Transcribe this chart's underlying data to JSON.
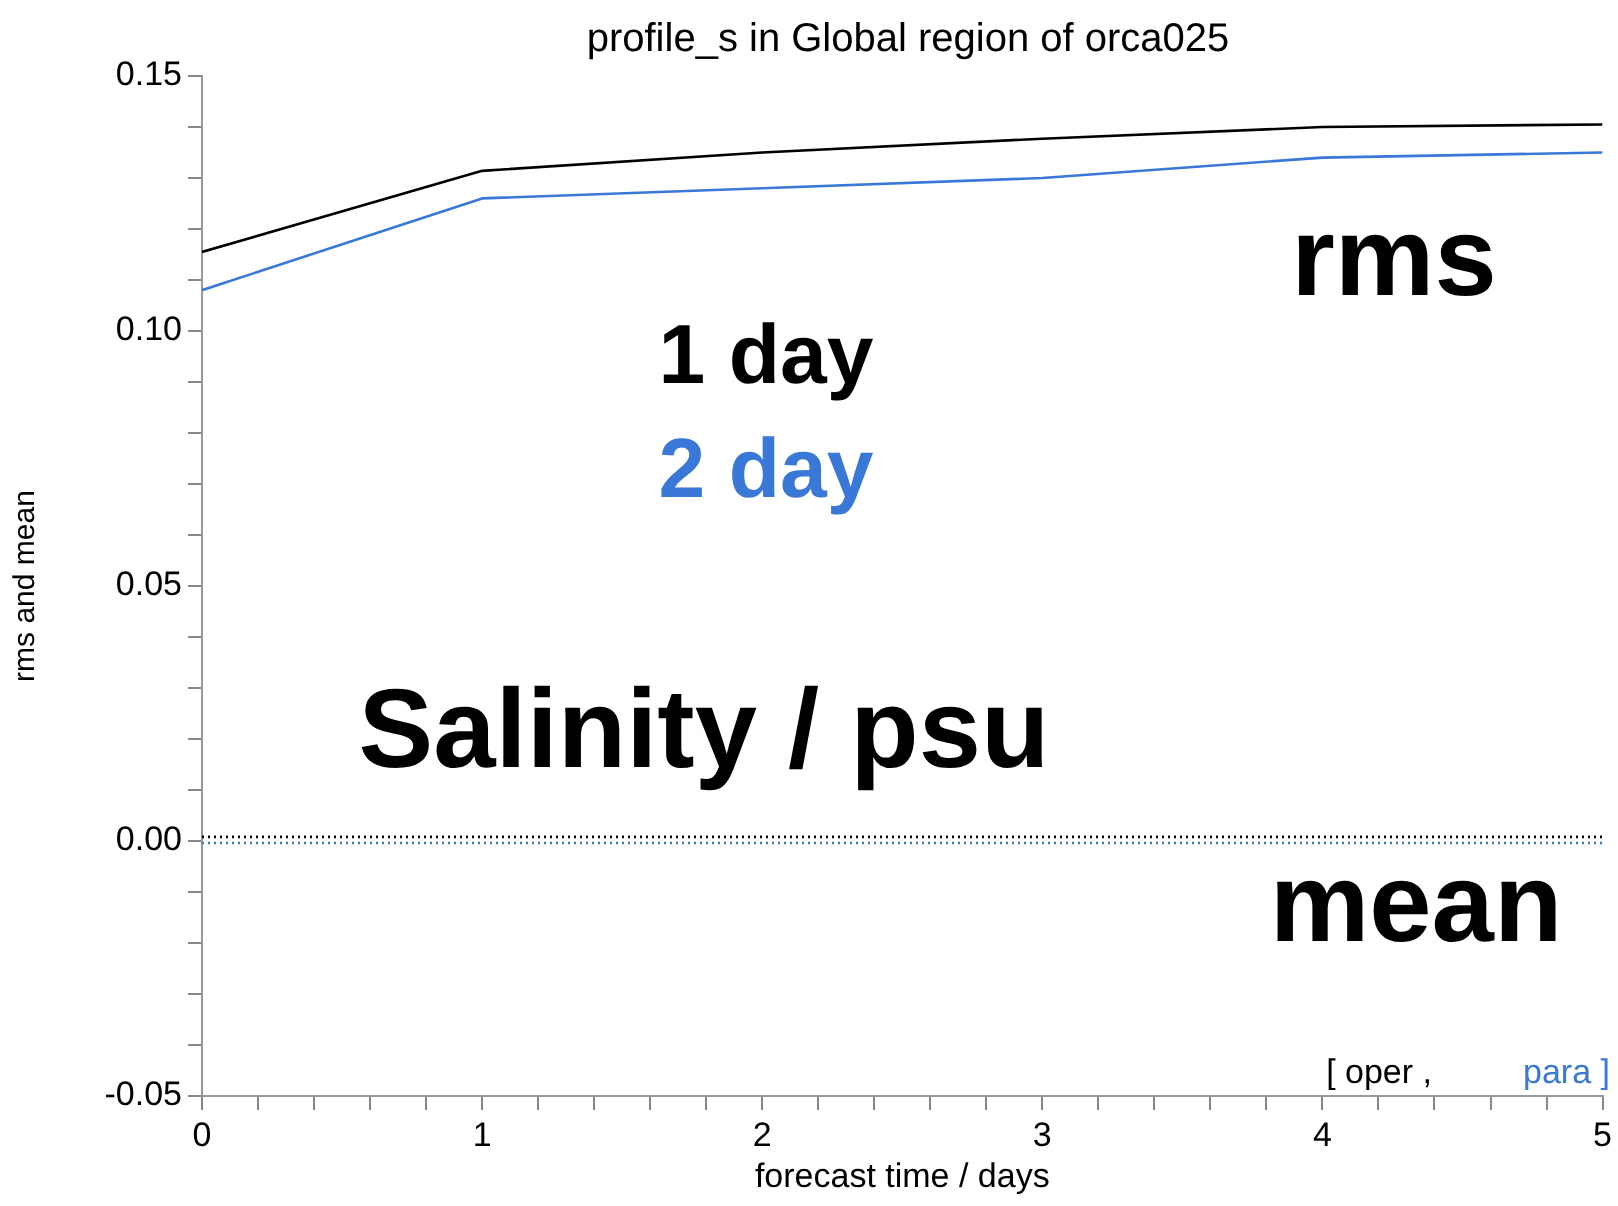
{
  "chart_data": {
    "type": "line",
    "title": "profile_s in Global region of orca025",
    "xlabel": "forecast time / days",
    "ylabel": "rms and mean",
    "x": [
      0,
      1,
      2,
      3,
      4,
      5
    ],
    "series": [
      {
        "name": "1 day",
        "color": "#000000",
        "values": [
          0.1155,
          0.1314,
          0.135,
          0.1377,
          0.14,
          0.1405
        ]
      },
      {
        "name": "2 day",
        "color": "#3a78d8",
        "values": [
          0.108,
          0.126,
          0.128,
          0.13,
          0.134,
          0.135
        ]
      },
      {
        "color": "#000000",
        "line_style": "dotted",
        "values": [
          0.0008,
          0.0008,
          0.0008,
          0.0008,
          0.0008,
          0.0008
        ]
      },
      {
        "color": "#3a78d8",
        "line_style": "dotted",
        "values": [
          -0.0004,
          -0.0004,
          -0.0004,
          -0.0004,
          -0.0004,
          -0.0004
        ]
      }
    ],
    "xlim": [
      0,
      5
    ],
    "xticks": [
      0,
      {
        "value": 0.2,
        "label": null
      },
      {
        "value": 0.4,
        "label": null
      },
      {
        "value": 0.6,
        "label": null
      },
      {
        "value": 0.8,
        "label": null
      },
      1,
      {
        "value": 1.2,
        "label": null
      },
      {
        "value": 1.4,
        "label": null
      },
      {
        "value": 1.6,
        "label": null
      },
      {
        "value": 1.8,
        "label": null
      },
      2,
      {
        "value": 2.2,
        "label": null
      },
      {
        "value": 2.4,
        "label": null
      },
      {
        "value": 2.6,
        "label": null
      },
      {
        "value": 2.8,
        "label": null
      },
      3,
      {
        "value": 3.2,
        "label": null
      },
      {
        "value": 3.4,
        "label": null
      },
      {
        "value": 3.6,
        "label": null
      },
      {
        "value": 3.8,
        "label": null
      },
      4,
      {
        "value": 4.2,
        "label": null
      },
      {
        "value": 4.4,
        "label": null
      },
      {
        "value": 4.6,
        "label": null
      },
      {
        "value": 4.8,
        "label": null
      },
      5
    ],
    "ylim": [
      -0.05,
      0.15
    ],
    "yticks": [
      {
        "value": -0.05,
        "label": "-0.05"
      },
      {
        "value": -0.04,
        "label": null
      },
      {
        "value": -0.03,
        "label": null
      },
      {
        "value": -0.02,
        "label": null
      },
      {
        "value": -0.01,
        "label": null
      },
      {
        "value": 0,
        "label": "0.00"
      },
      {
        "value": 0.01,
        "label": null
      },
      {
        "value": 0.02,
        "label": null
      },
      {
        "value": 0.03,
        "label": null
      },
      {
        "value": 0.04,
        "label": null
      },
      {
        "value": 0.05,
        "label": "0.05"
      },
      {
        "value": 0.06,
        "label": null
      },
      {
        "value": 0.07,
        "label": null
      },
      {
        "value": 0.08,
        "label": null
      },
      {
        "value": 0.09,
        "label": null
      },
      {
        "value": 0.1,
        "label": "0.10"
      },
      {
        "value": 0.11,
        "label": null
      },
      {
        "value": 0.12,
        "label": null
      },
      {
        "value": 0.13,
        "label": null
      },
      {
        "value": 0.14,
        "label": null
      },
      {
        "value": 0.15,
        "label": "0.15"
      }
    ],
    "marker": "none",
    "line_style": "solid",
    "grid": false,
    "annotations": [
      "rms",
      "Salinity / psu",
      "mean",
      "[ oper ,",
      "para ]"
    ]
  }
}
